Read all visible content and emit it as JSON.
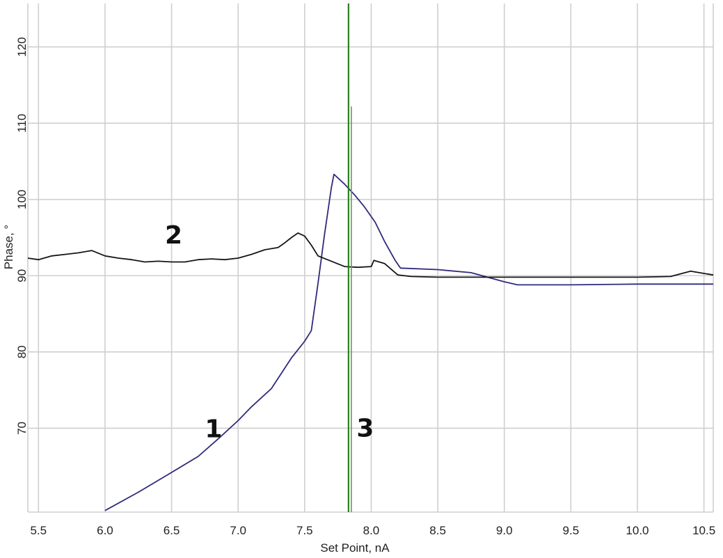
{
  "chart_data": {
    "type": "line",
    "title": "",
    "xlabel": "Set Point, nA",
    "ylabel": "Phase, °",
    "xlim": [
      5.42,
      10.57
    ],
    "ylim": [
      59,
      125.7
    ],
    "grid": true,
    "x_ticks": [
      5.5,
      6.0,
      6.5,
      7.0,
      7.5,
      8.0,
      8.5,
      9.0,
      9.5,
      10.0,
      10.5
    ],
    "x_tick_labels": [
      "5.5",
      "6.0",
      "6.5",
      "7.0",
      "7.5",
      "8.0",
      "8.5",
      "9.0",
      "9.5",
      "10.0",
      "10.5"
    ],
    "y_ticks": [
      70,
      80,
      90,
      100,
      110,
      120
    ],
    "y_tick_labels": [
      "70",
      "80",
      "90",
      "100",
      "110",
      "120"
    ],
    "series": [
      {
        "label": "1",
        "color": "#2e2a78",
        "label_pos": [
          6.75,
          68.8
        ],
        "x": [
          6.0,
          6.25,
          6.5,
          6.7,
          6.85,
          7.0,
          7.1,
          7.25,
          7.4,
          7.5,
          7.55,
          7.6,
          7.65,
          7.7,
          7.72,
          7.8,
          7.88,
          7.95,
          8.03,
          8.1,
          8.18,
          8.22,
          8.5,
          8.75,
          9.0,
          9.1,
          9.5,
          10.0,
          10.3,
          10.57
        ],
        "y": [
          59.2,
          61.6,
          64.2,
          66.3,
          68.6,
          71.0,
          72.8,
          75.2,
          79.2,
          81.4,
          82.8,
          89.0,
          95.5,
          101.5,
          103.3,
          102.0,
          100.5,
          99.0,
          97.0,
          94.5,
          92.0,
          91.0,
          90.8,
          90.4,
          89.2,
          88.8,
          88.8,
          88.9,
          88.9,
          88.9
        ]
      },
      {
        "label": "2",
        "color": "#151515",
        "label_pos": [
          6.45,
          94.2
        ],
        "x": [
          5.42,
          5.5,
          5.6,
          5.7,
          5.8,
          5.9,
          6.0,
          6.1,
          6.2,
          6.3,
          6.4,
          6.5,
          6.6,
          6.7,
          6.8,
          6.9,
          7.0,
          7.1,
          7.2,
          7.3,
          7.35,
          7.4,
          7.45,
          7.5,
          7.55,
          7.6,
          7.7,
          7.8,
          7.9,
          8.0,
          8.02,
          8.1,
          8.2,
          8.3,
          8.5,
          9.0,
          9.5,
          10.0,
          10.25,
          10.4,
          10.5,
          10.57
        ],
        "y": [
          92.3,
          92.1,
          92.6,
          92.8,
          93.0,
          93.3,
          92.6,
          92.3,
          92.1,
          91.8,
          91.9,
          91.8,
          91.8,
          92.1,
          92.2,
          92.1,
          92.3,
          92.8,
          93.4,
          93.7,
          94.3,
          95.0,
          95.6,
          95.2,
          94.0,
          92.6,
          91.9,
          91.2,
          91.1,
          91.2,
          92.0,
          91.6,
          90.1,
          89.9,
          89.8,
          89.8,
          89.8,
          89.8,
          89.9,
          90.6,
          90.3,
          90.1
        ]
      },
      {
        "label": "3",
        "color": "#2d7d1f",
        "label_pos": [
          7.89,
          68.9
        ],
        "x": [
          7.84,
          7.84
        ],
        "y": [
          59,
          125.7
        ]
      }
    ]
  }
}
